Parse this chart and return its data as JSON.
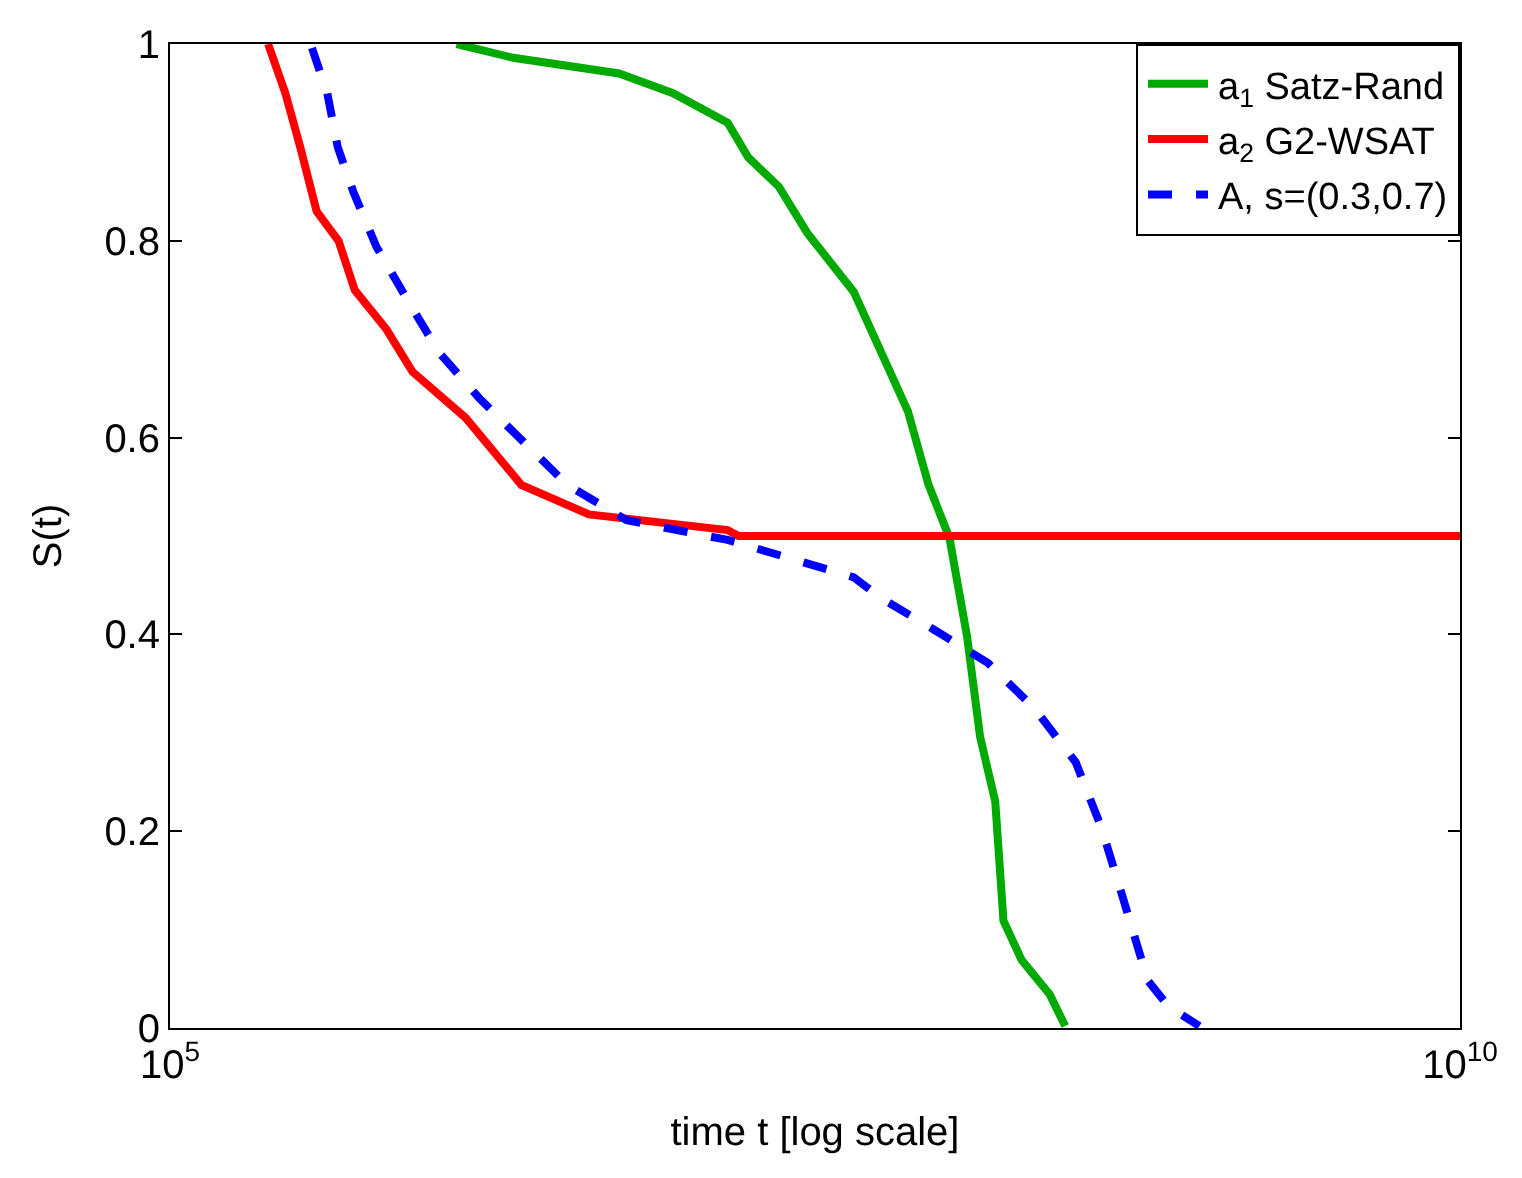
{
  "chart_data": {
    "type": "line",
    "xlabel": "time t [log scale]",
    "ylabel": "S(t)",
    "log": "x",
    "xlim": [
      100000,
      10000000000
    ],
    "xticks": [
      {
        "value": 100000,
        "label": "10$^{5}$"
      },
      {
        "value": 10000000000,
        "label": "10$^{10}$"
      }
    ],
    "ylim": [
      0,
      1
    ],
    "yticks": [
      0,
      0.2,
      0.4,
      0.6,
      0.8,
      1
    ],
    "legend": "top right",
    "marker": "none",
    "series": [
      {
        "name": "a$_{1}$ Satz-Rand",
        "color": "#00aa00",
        "line_style": "solid",
        "x": [
          1290000,
          2140000,
          5500000,
          8910000,
          14500000,
          17400000,
          22900000,
          29500000,
          44700000,
          72400000,
          87100000,
          105000000,
          123000000,
          138000000,
          158000000,
          170000000,
          200000000,
          257000000,
          295000000
        ],
        "values": [
          1.0,
          0.986,
          0.97,
          0.95,
          0.92,
          0.885,
          0.855,
          0.808,
          0.748,
          0.627,
          0.552,
          0.498,
          0.397,
          0.296,
          0.23,
          0.109,
          0.069,
          0.034,
          0.002
        ]
      },
      {
        "name": "a$_{2}$ G2-WSAT",
        "color": "#ff0000",
        "line_style": "solid",
        "x": [
          240000,
          280000,
          320000,
          370000,
          450000,
          520000,
          690000,
          870000,
          1400000,
          2300000,
          4200000,
          14500000,
          16000000,
          10000000000
        ],
        "values": [
          1.0,
          0.95,
          0.895,
          0.83,
          0.8,
          0.75,
          0.71,
          0.667,
          0.62,
          0.552,
          0.522,
          0.506,
          0.5,
          0.5
        ]
      },
      {
        "name": "A, s=(0.3,0.7)",
        "color": "#0000ff",
        "line_style": "dashed",
        "x": [
          355000,
          407000,
          447000,
          513000,
          631000,
          832000,
          1100000,
          1580000,
          2400000,
          3470000,
          5890000,
          14500000,
          26300000,
          44700000,
          56200000,
          91200000,
          148000000,
          224000000,
          324000000,
          407000000,
          490000000,
          617000000,
          741000000,
          977000000
        ],
        "values": [
          0.996,
          0.95,
          0.895,
          0.85,
          0.794,
          0.74,
          0.687,
          0.64,
          0.593,
          0.552,
          0.516,
          0.496,
          0.476,
          0.458,
          0.438,
          0.405,
          0.371,
          0.325,
          0.27,
          0.204,
          0.135,
          0.048,
          0.022,
          0.002
        ]
      }
    ]
  }
}
